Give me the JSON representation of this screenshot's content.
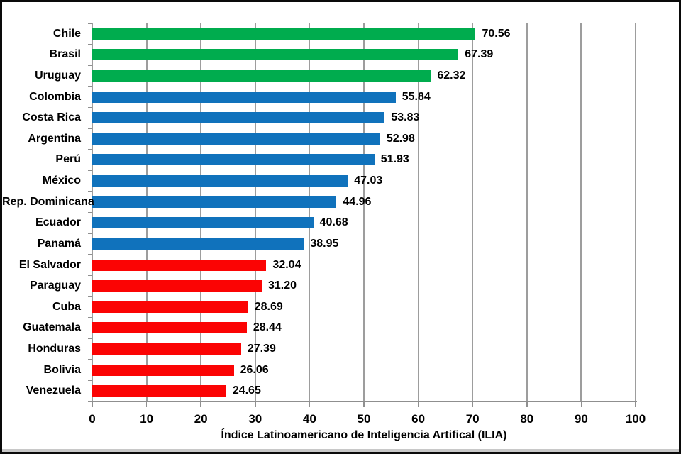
{
  "chart_data": {
    "type": "bar",
    "orientation": "horizontal",
    "title": "",
    "xlabel": "Índice Latinoamericano de Inteligencia Artifical (ILIA)",
    "ylabel": "",
    "xlim": [
      0,
      100
    ],
    "x_ticks": [
      0,
      10,
      20,
      30,
      40,
      50,
      60,
      70,
      80,
      90,
      100
    ],
    "grid": true,
    "legend": false,
    "categories": [
      "Chile",
      "Brasil",
      "Uruguay",
      "Colombia",
      "Costa Rica",
      "Argentina",
      "Perú",
      "México",
      "Rep. Dominicana",
      "Ecuador",
      "Panamá",
      "El Salvador",
      "Paraguay",
      "Cuba",
      "Guatemala",
      "Honduras",
      "Bolivia",
      "Venezuela"
    ],
    "values": [
      70.56,
      67.39,
      62.32,
      55.84,
      53.83,
      52.98,
      51.93,
      47.03,
      44.96,
      40.68,
      38.95,
      32.04,
      31.2,
      28.69,
      28.44,
      27.39,
      26.06,
      24.65
    ],
    "value_labels": [
      "70.56",
      "67.39",
      "62.32",
      "55.84",
      "53.83",
      "52.98",
      "51.93",
      "47.03",
      "44.96",
      "40.68",
      "38.95",
      "32.04",
      "31.20",
      "28.69",
      "28.44",
      "27.39",
      "26.06",
      "24.65"
    ],
    "bar_color_groups": [
      "green",
      "green",
      "green",
      "blue",
      "blue",
      "blue",
      "blue",
      "blue",
      "blue",
      "blue",
      "blue",
      "red",
      "red",
      "red",
      "red",
      "red",
      "red",
      "red"
    ],
    "colors": {
      "green": "#00AC4E",
      "blue": "#1072BC",
      "red": "#FB0404"
    },
    "gridline_color": "#9d9d9d",
    "axis_color": "#8f8f8f",
    "text_color": "#000000"
  }
}
